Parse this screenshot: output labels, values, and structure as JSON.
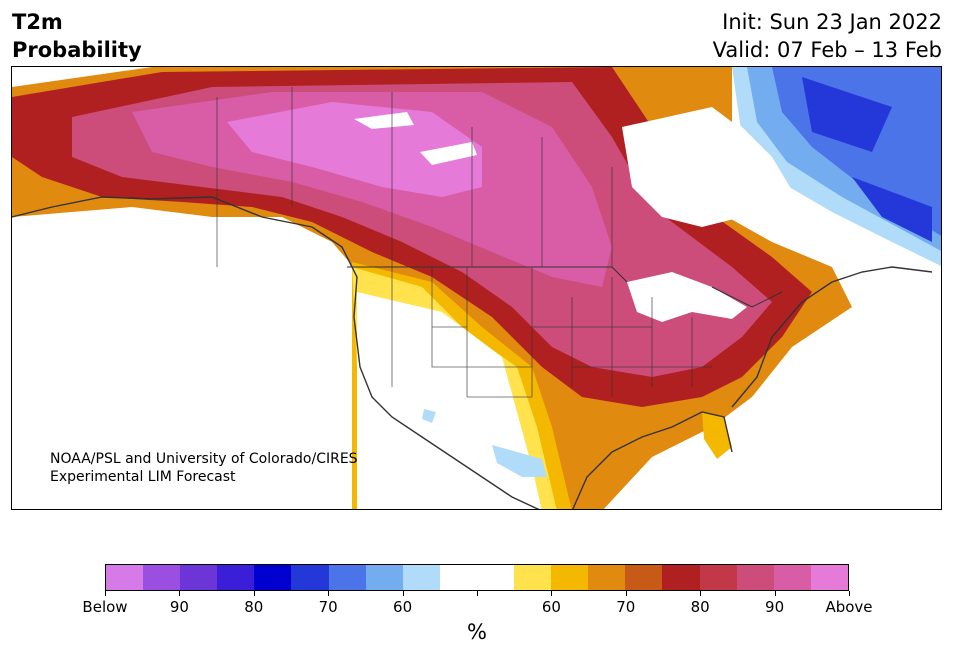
{
  "header": {
    "title_line1": "T2m",
    "title_line2": "Probability",
    "init": "Init: Sun 23 Jan 2022",
    "valid": "Valid: 07 Feb – 13 Feb"
  },
  "credit": {
    "line1": "NOAA/PSL and University of Colorado/CIRES",
    "line2": "Experimental LIM Forecast"
  },
  "colorbar": {
    "colors": [
      "#d67ae8",
      "#9a4fe0",
      "#6c35d8",
      "#3a1ed8",
      "#0000d0",
      "#2438da",
      "#4a74e8",
      "#74acf0",
      "#b0dcfa",
      "#ffffff",
      "#ffffff",
      "#ffe24c",
      "#f5b800",
      "#e08a10",
      "#c85a18",
      "#b02020",
      "#c23848",
      "#cc4c7a",
      "#d85ca6",
      "#e67ad8"
    ],
    "tick_labels": [
      "Below",
      "90",
      "80",
      "70",
      "60",
      "",
      "60",
      "70",
      "80",
      "90",
      "Above"
    ],
    "unit": "%"
  },
  "map": {
    "legend_terms": [
      "Below",
      "Above"
    ],
    "palette": {
      "deep_above": "#e67ad8",
      "above_90": "#d85ca6",
      "above_80": "#cc4c7a",
      "above_75": "#c23848",
      "above_70": "#b02020",
      "above_65": "#c85a18",
      "above_60": "#e08a10",
      "above_55": "#f5b800",
      "above_50": "#ffe24c",
      "below_60": "#b0dcfa",
      "below_65": "#74acf0",
      "below_70": "#4a74e8",
      "below_80": "#2438da",
      "coast": "#333333"
    }
  }
}
